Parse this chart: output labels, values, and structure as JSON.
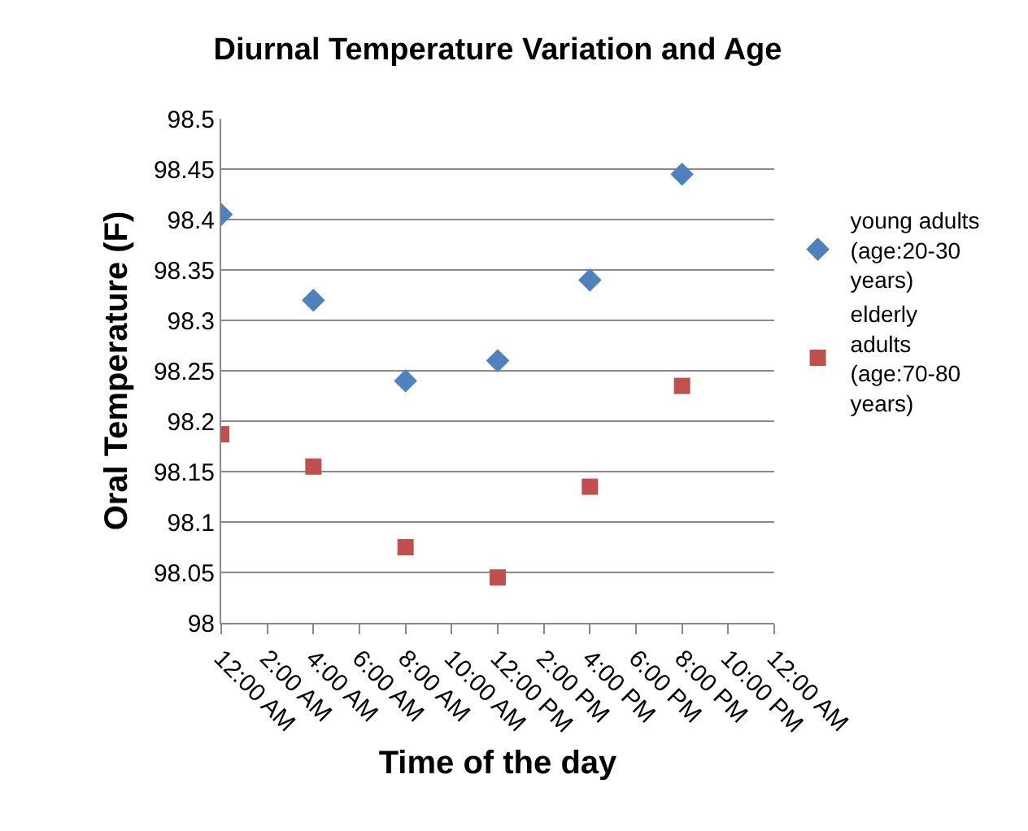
{
  "chart_data": {
    "type": "scatter",
    "title": "Diurnal Temperature Variation and Age",
    "xlabel": "Time of the day",
    "ylabel": "Oral Temperature (F)",
    "x": [
      0,
      4,
      8,
      12,
      16,
      20
    ],
    "series": [
      {
        "name": "young adults (age:20-30 years)",
        "color": "#4f81bd",
        "marker": "diamond",
        "values": [
          98.405,
          98.32,
          98.24,
          98.26,
          98.34,
          98.445
        ]
      },
      {
        "name": "elderly adults (age:70-80 years)",
        "color": "#c0504d",
        "marker": "square",
        "values": [
          98.187,
          98.155,
          98.075,
          98.045,
          98.135,
          98.235
        ]
      }
    ],
    "xlim": [
      0,
      24
    ],
    "xticks": [
      {
        "value": 0,
        "label": "12:00 AM"
      },
      {
        "value": 2,
        "label": "2:00 AM"
      },
      {
        "value": 4,
        "label": "4:00 AM"
      },
      {
        "value": 6,
        "label": "6:00 AM"
      },
      {
        "value": 8,
        "label": "8:00 AM"
      },
      {
        "value": 10,
        "label": "10:00 AM"
      },
      {
        "value": 12,
        "label": "12:00 PM"
      },
      {
        "value": 14,
        "label": "2:00 PM"
      },
      {
        "value": 16,
        "label": "4:00 PM"
      },
      {
        "value": 18,
        "label": "6:00 PM"
      },
      {
        "value": 20,
        "label": "8:00 PM"
      },
      {
        "value": 22,
        "label": "10:00 PM"
      },
      {
        "value": 24,
        "label": "12:00 AM"
      }
    ],
    "ylim": [
      98,
      98.5
    ],
    "yticks": [
      98,
      98.05,
      98.1,
      98.15,
      98.2,
      98.25,
      98.3,
      98.35,
      98.4,
      98.45,
      98.5
    ],
    "grid": "y",
    "legend": "right"
  }
}
